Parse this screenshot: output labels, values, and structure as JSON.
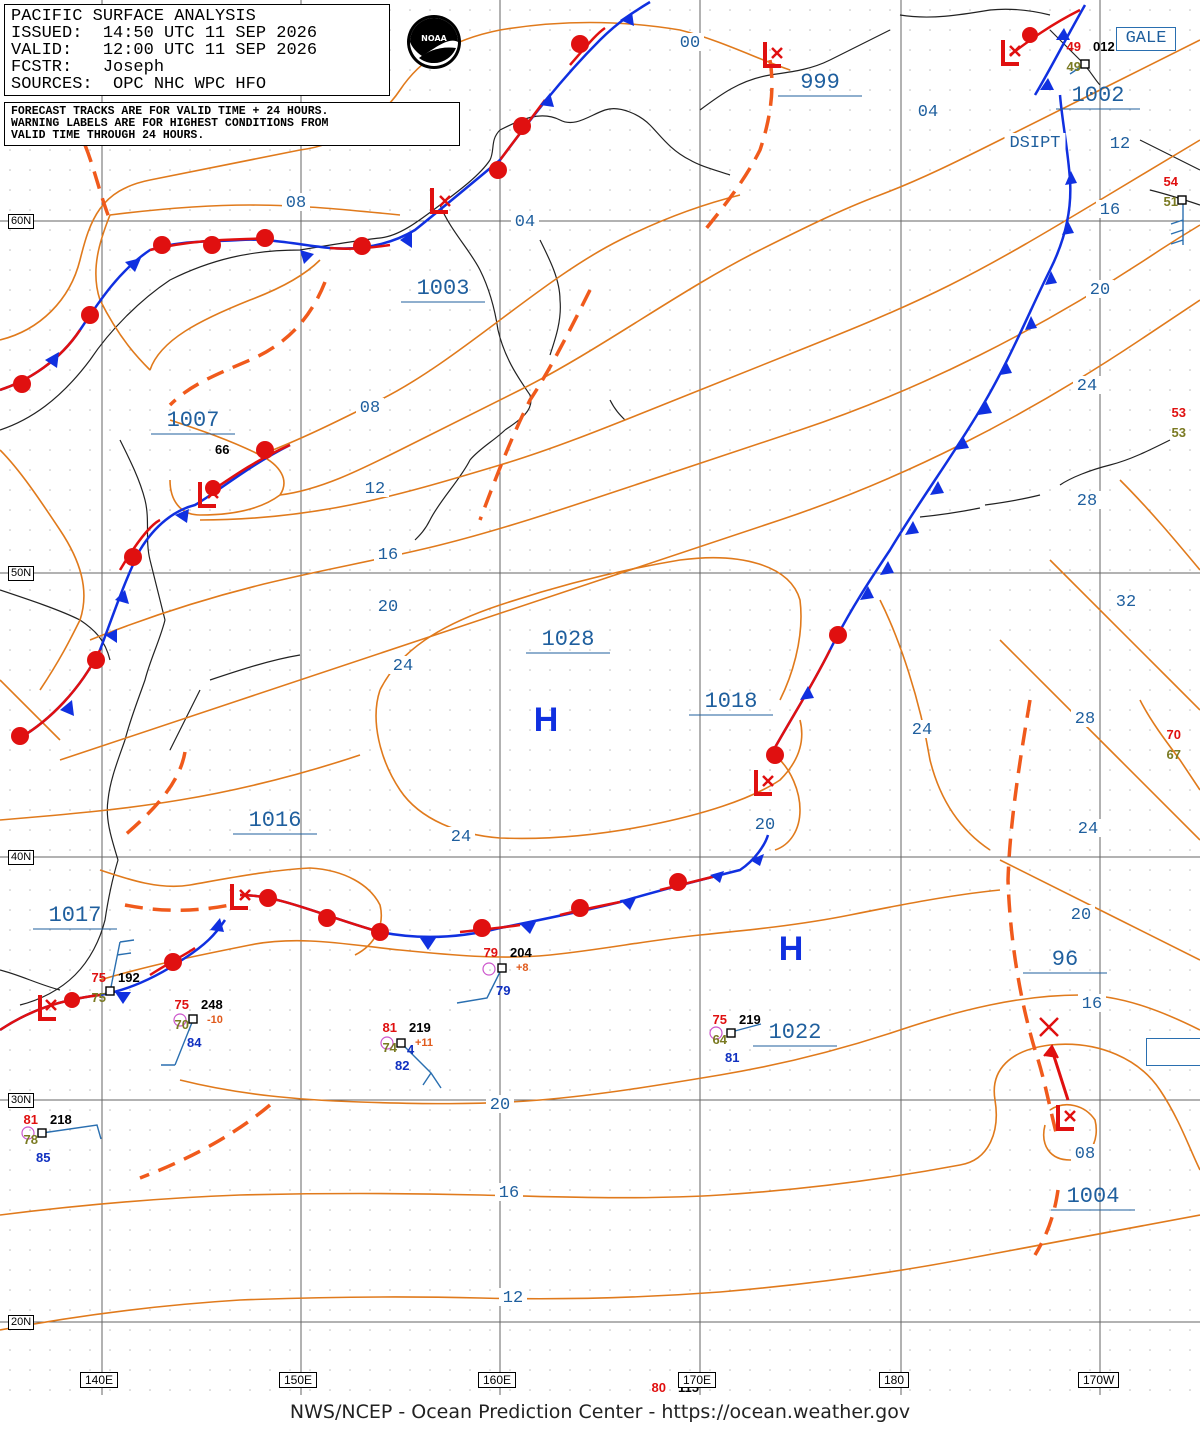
{
  "header": {
    "line1": "PACIFIC SURFACE ANALYSIS",
    "line2": "ISSUED:  14:50 UTC 11 SEP 2026",
    "line3": "VALID:   12:00 UTC 11 SEP 2026",
    "line4": "FCSTR:   Joseph",
    "line5": "SOURCES:  OPC NHC WPC HFO"
  },
  "notes": {
    "line1": "FORECAST TRACKS ARE FOR VALID TIME + 24 HOURS.",
    "line2": "WARNING LABELS ARE FOR HIGHEST CONDITIONS FROM",
    "line3": "VALID TIME THROUGH 24 HOURS."
  },
  "logo_text": "NOAA",
  "gale_label": "GALE",
  "footer": "NWS/NCEP - Ocean Prediction Center - https://ocean.weather.gov",
  "lat_labels": [
    {
      "text": "60N",
      "lat": 60
    },
    {
      "text": "50N",
      "lat": 50
    },
    {
      "text": "40N",
      "lat": 40
    },
    {
      "text": "30N",
      "lat": 30
    },
    {
      "text": "20N",
      "lat": 20
    }
  ],
  "lon_labels": [
    {
      "text": "140E",
      "lon": 140
    },
    {
      "text": "150E",
      "lon": 150
    },
    {
      "text": "160E",
      "lon": 160
    },
    {
      "text": "170E",
      "lon": 170
    },
    {
      "text": "180",
      "lon": 180
    },
    {
      "text": "170W",
      "lon": 190
    }
  ],
  "pressure_centers": [
    {
      "type": "H",
      "label": "1028"
    },
    {
      "type": "H",
      "label": "1022"
    },
    {
      "type": "L",
      "label": "1004"
    },
    {
      "type": "L",
      "label": "1007"
    },
    {
      "type": "L",
      "label": "1003"
    },
    {
      "type": "L",
      "label": "999"
    },
    {
      "type": "L",
      "label": "1002"
    },
    {
      "type": "L",
      "label": "1016"
    },
    {
      "type": "L",
      "label": "1017"
    },
    {
      "type": "L",
      "label": "1018"
    },
    {
      "type": "L",
      "label": "96"
    }
  ],
  "isobar_labels": [
    "00",
    "04",
    "04",
    "08",
    "08",
    "12",
    "12",
    "16",
    "16",
    "16",
    "20",
    "20",
    "20",
    "20",
    "20",
    "24",
    "24",
    "24",
    "24",
    "24",
    "28",
    "28",
    "32",
    "08",
    "16",
    "12",
    "DSIPT"
  ],
  "stations": [
    {
      "temp": "75",
      "dew": "75",
      "pres": "192"
    },
    {
      "temp": "75",
      "dew": "70",
      "pres": "248",
      "tend": "-10",
      "sst": "84"
    },
    {
      "temp": "81",
      "dew": "74",
      "pres": "219",
      "tend": "+11",
      "sst": "82",
      "extra": "4"
    },
    {
      "temp": "79",
      "pres": "204",
      "tend": "+8",
      "sst": "79"
    },
    {
      "temp": "75",
      "dew": "64",
      "pres": "219",
      "sst": "81"
    },
    {
      "temp": "81",
      "dew": "78",
      "pres": "218",
      "sst": "85"
    },
    {
      "temp": "49",
      "dew": "49",
      "pres": "012"
    },
    {
      "temp": "54",
      "dew": "51"
    },
    {
      "temp": "53",
      "dew": "53"
    },
    {
      "temp": "70",
      "dew": "67"
    },
    {
      "temp": "80",
      "pres": "115"
    },
    {
      "pres": "66"
    }
  ],
  "colors": {
    "isobar": "#e07a1c",
    "label_blue": "#1f5f9e",
    "cold_front": "#1030e0",
    "warm_front": "#e01010",
    "trough": "#f05a1c",
    "coast": "#222222",
    "grid": "#555555"
  }
}
